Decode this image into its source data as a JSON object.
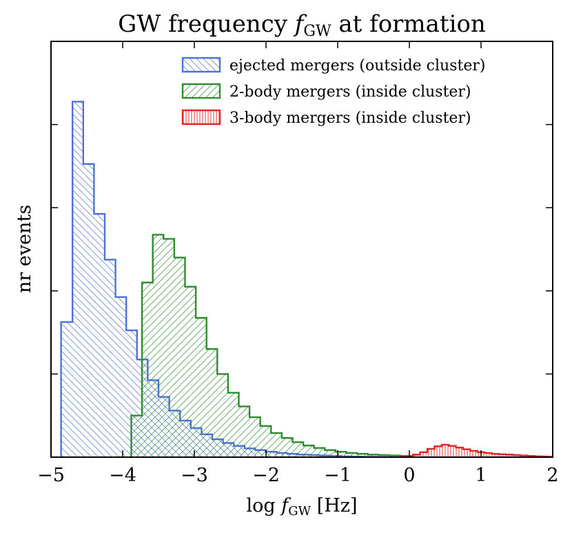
{
  "chart_data": {
    "type": "histogram",
    "title_parts": [
      "GW frequency ",
      "f",
      "GW",
      " at formation"
    ],
    "xlabel_parts": [
      "log ",
      "f",
      "GW",
      " [Hz]"
    ],
    "ylabel": "nr events",
    "xlim": [
      -5,
      2
    ],
    "ylim": [
      0,
      1
    ],
    "xticks": [
      -5,
      -4,
      -3,
      -2,
      -1,
      0,
      1,
      2
    ],
    "xtick_labels": [
      "−5",
      "−4",
      "−3",
      "−2",
      "−1",
      "0",
      "1",
      "2"
    ],
    "yticks": [
      0.2,
      0.4,
      0.6,
      0.8
    ],
    "show_y_tick_labels": false,
    "legend_position": "top-right",
    "series": [
      {
        "name": "ejected mergers (outside cluster)",
        "color": "#4a72d8",
        "hatch": "\\\\",
        "bins": [
          [
            -4.86,
            -4.7,
            0.325
          ],
          [
            -4.7,
            -4.55,
            0.855
          ],
          [
            -4.55,
            -4.4,
            0.705
          ],
          [
            -4.4,
            -4.25,
            0.585
          ],
          [
            -4.25,
            -4.1,
            0.475
          ],
          [
            -4.1,
            -3.95,
            0.385
          ],
          [
            -3.95,
            -3.8,
            0.305
          ],
          [
            -3.8,
            -3.65,
            0.235
          ],
          [
            -3.65,
            -3.5,
            0.185
          ],
          [
            -3.5,
            -3.35,
            0.145
          ],
          [
            -3.35,
            -3.2,
            0.112
          ],
          [
            -3.2,
            -3.05,
            0.088
          ],
          [
            -3.05,
            -2.9,
            0.07
          ],
          [
            -2.9,
            -2.75,
            0.055
          ],
          [
            -2.75,
            -2.6,
            0.043
          ],
          [
            -2.6,
            -2.45,
            0.034
          ],
          [
            -2.45,
            -2.3,
            0.027
          ],
          [
            -2.3,
            -2.15,
            0.021
          ],
          [
            -2.15,
            -2.0,
            0.017
          ],
          [
            -2.0,
            -1.85,
            0.013
          ],
          [
            -1.85,
            -1.7,
            0.01
          ],
          [
            -1.7,
            -1.55,
            0.008
          ],
          [
            -1.55,
            -1.4,
            0.006
          ],
          [
            -1.4,
            -1.25,
            0.005
          ],
          [
            -1.25,
            -1.1,
            0.004
          ],
          [
            -1.1,
            -0.95,
            0.003
          ],
          [
            -0.95,
            -0.8,
            0.002
          ],
          [
            -0.8,
            -0.65,
            0.0015
          ],
          [
            -0.65,
            -0.5,
            0.001
          ],
          [
            -0.5,
            -0.35,
            0.0008
          ],
          [
            -0.35,
            -0.2,
            0.0005
          ]
        ]
      },
      {
        "name": "2-body mergers (inside cluster)",
        "color": "#2e8b2e",
        "hatch": "//",
        "bins": [
          [
            -3.88,
            -3.73,
            0.1
          ],
          [
            -3.73,
            -3.58,
            0.42
          ],
          [
            -3.58,
            -3.43,
            0.535
          ],
          [
            -3.43,
            -3.28,
            0.525
          ],
          [
            -3.28,
            -3.13,
            0.48
          ],
          [
            -3.13,
            -2.98,
            0.41
          ],
          [
            -2.98,
            -2.83,
            0.335
          ],
          [
            -2.83,
            -2.68,
            0.26
          ],
          [
            -2.68,
            -2.53,
            0.2
          ],
          [
            -2.53,
            -2.38,
            0.155
          ],
          [
            -2.38,
            -2.23,
            0.122
          ],
          [
            -2.23,
            -2.08,
            0.096
          ],
          [
            -2.08,
            -1.93,
            0.075
          ],
          [
            -1.93,
            -1.78,
            0.058
          ],
          [
            -1.78,
            -1.63,
            0.046
          ],
          [
            -1.63,
            -1.48,
            0.036
          ],
          [
            -1.48,
            -1.33,
            0.028
          ],
          [
            -1.33,
            -1.18,
            0.022
          ],
          [
            -1.18,
            -1.03,
            0.017
          ],
          [
            -1.03,
            -0.88,
            0.013
          ],
          [
            -0.88,
            -0.73,
            0.01
          ],
          [
            -0.73,
            -0.58,
            0.008
          ],
          [
            -0.58,
            -0.43,
            0.006
          ],
          [
            -0.43,
            -0.28,
            0.005
          ],
          [
            -0.28,
            -0.13,
            0.004
          ],
          [
            -0.13,
            0.02,
            0.003
          ]
        ]
      },
      {
        "name": "3-body mergers (inside cluster)",
        "color": "#e52222",
        "hatch": "||",
        "bins": [
          [
            -0.1,
            0.05,
            0.003
          ],
          [
            0.05,
            0.15,
            0.006
          ],
          [
            0.15,
            0.25,
            0.012
          ],
          [
            0.25,
            0.35,
            0.02
          ],
          [
            0.35,
            0.45,
            0.026
          ],
          [
            0.45,
            0.55,
            0.03
          ],
          [
            0.55,
            0.65,
            0.027
          ],
          [
            0.65,
            0.75,
            0.023
          ],
          [
            0.75,
            0.85,
            0.019
          ],
          [
            0.85,
            0.95,
            0.015
          ],
          [
            0.95,
            1.05,
            0.012
          ],
          [
            1.05,
            1.15,
            0.01
          ],
          [
            1.15,
            1.25,
            0.008
          ],
          [
            1.25,
            1.35,
            0.007
          ],
          [
            1.35,
            1.45,
            0.006
          ],
          [
            1.45,
            1.55,
            0.005
          ],
          [
            1.55,
            1.65,
            0.004
          ],
          [
            1.65,
            1.75,
            0.003
          ],
          [
            1.75,
            1.85,
            0.002
          ],
          [
            1.85,
            1.95,
            0.0015
          ],
          [
            1.95,
            2.0,
            0.001
          ]
        ]
      }
    ]
  }
}
